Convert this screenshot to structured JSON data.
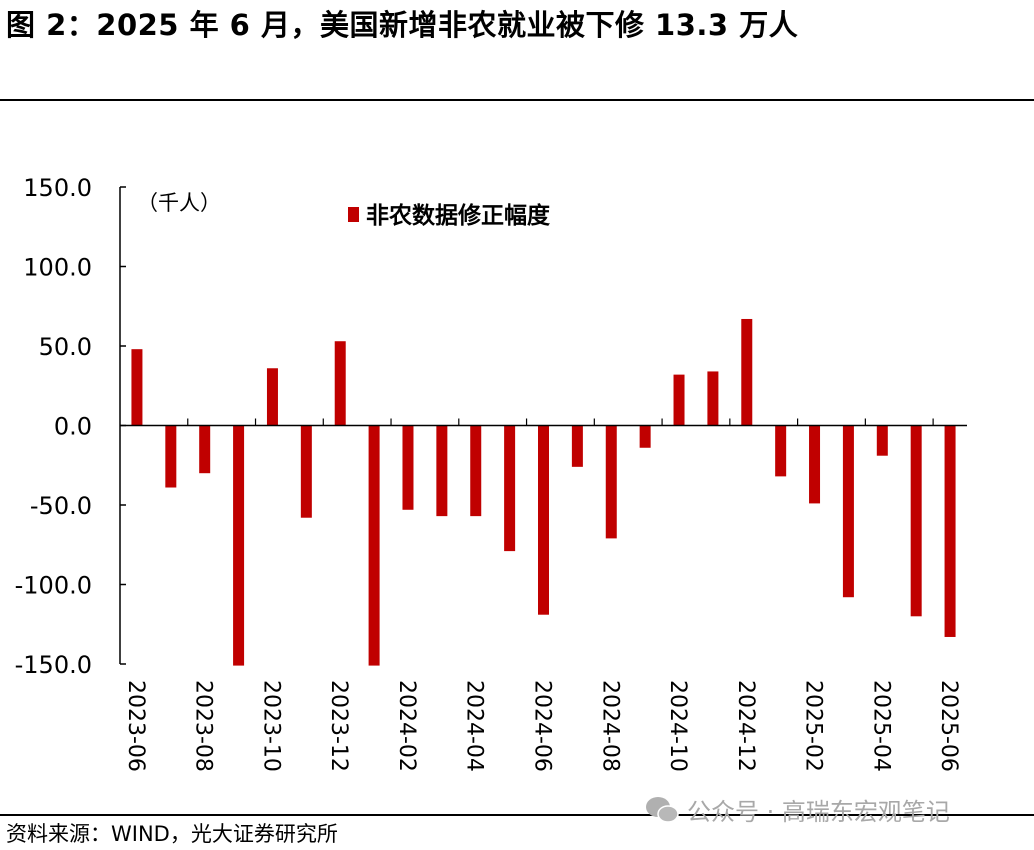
{
  "title": "图 2：2025 年 6 月，美国新增非农就业被下修 13.3 万人",
  "source": "资料来源：WIND，光大证券研究所",
  "watermark": "公众号 · 高瑞东宏观笔记",
  "chart_data": {
    "type": "bar",
    "unit_label": "（千人）",
    "categories": [
      "2023-06",
      "2023-07",
      "2023-08",
      "2023-09",
      "2023-10",
      "2023-11",
      "2023-12",
      "2024-01",
      "2024-02",
      "2024-03",
      "2024-04",
      "2024-05",
      "2024-06",
      "2024-07",
      "2024-08",
      "2024-09",
      "2024-10",
      "2024-11",
      "2024-12",
      "2025-01",
      "2025-02",
      "2025-03",
      "2025-04",
      "2025-05",
      "2025-06"
    ],
    "x_tick_labels": [
      "2023-06",
      "2023-08",
      "2023-10",
      "2023-12",
      "2024-02",
      "2024-04",
      "2024-06",
      "2024-08",
      "2024-10",
      "2024-12",
      "2025-02",
      "2025-04",
      "2025-06"
    ],
    "series": [
      {
        "name": "非农数据修正幅度",
        "color": "#C00000",
        "values": [
          48,
          -39,
          -30,
          -151,
          36,
          -58,
          53,
          -151,
          -53,
          -57,
          -57,
          -79,
          -119,
          -26,
          -71,
          -14,
          32,
          34,
          67,
          -32,
          -49,
          -108,
          -19,
          -120,
          -133
        ]
      }
    ],
    "ylim": [
      -150,
      150
    ],
    "y_ticks": [
      "150.0",
      "100.0",
      "50.0",
      "0.0",
      "-50.0",
      "-100.0",
      "-150.0"
    ],
    "legend": "top-center",
    "grid": false
  }
}
